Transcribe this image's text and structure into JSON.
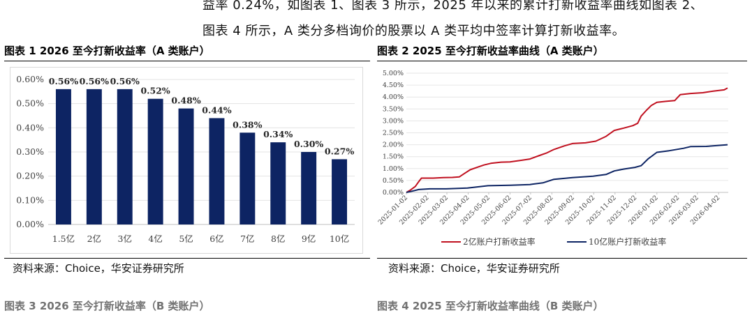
{
  "text": {
    "intro_line1": "益率 0.24%，如图表 1、图表 3 所示，2025 年以来的累计打新收益率曲线如图表 2、",
    "intro_line2": "图表 4 所示，A 类分多档询价的股票以 A 类平均中签率计算打新收益率。",
    "fig1_title": "图表 1 2026 至今打新收益率（A 类账户）",
    "fig2_title": "图表 2 2025 至今打新收益率曲线（A 类账户）",
    "source1": "资料来源：Choice，华安证券研究所",
    "source2": "资料来源：Choice，华安证券研究所",
    "next_fig3": "图表 3 2026 至今打新收益率（B 类账户）",
    "next_fig4": "图表 4 2025 至今打新收益率曲线（B 类账户）"
  },
  "chart_data": [
    {
      "type": "bar",
      "title": "",
      "categories": [
        "1.5亿",
        "2亿",
        "3亿",
        "4亿",
        "5亿",
        "6亿",
        "7亿",
        "8亿",
        "9亿",
        "10亿"
      ],
      "values": [
        0.56,
        0.56,
        0.56,
        0.52,
        0.48,
        0.44,
        0.38,
        0.34,
        0.3,
        0.27
      ],
      "data_labels": [
        "0.56%",
        "0.56%",
        "0.56%",
        "0.52%",
        "0.48%",
        "0.44%",
        "0.38%",
        "0.34%",
        "0.30%",
        "0.27%"
      ],
      "y_ticks": [
        "0.00%",
        "0.10%",
        "0.20%",
        "0.30%",
        "0.40%",
        "0.50%",
        "0.60%"
      ],
      "ylim": [
        0,
        0.6
      ],
      "grid": true,
      "bar_color": "#0d2463"
    },
    {
      "type": "line",
      "title": "",
      "x_ticks": [
        "2025-01-02",
        "2025-02-02",
        "2025-03-02",
        "2025-04-02",
        "2025-05-02",
        "2025-06-02",
        "2025-07-02",
        "2025-08-02",
        "2025-09-02",
        "2025-10-02",
        "2025-11-02",
        "2025-12-02",
        "2026-01-02",
        "2026-02-02",
        "2026-03-02",
        "2026-04-02"
      ],
      "y_ticks": [
        "0.00%",
        "0.50%",
        "1.00%",
        "1.50%",
        "2.00%",
        "2.50%",
        "3.00%",
        "3.50%",
        "4.00%",
        "4.50%",
        "5.00%"
      ],
      "ylim": [
        0,
        5.0
      ],
      "grid": true,
      "legend_position": "bottom",
      "series": [
        {
          "name": "2亿账户打新收益率",
          "color": "#c0101f",
          "points": [
            [
              "2025-01-02",
              0.0
            ],
            [
              "2025-01-08",
              0.1
            ],
            [
              "2025-01-15",
              0.25
            ],
            [
              "2025-01-20",
              0.45
            ],
            [
              "2025-01-24",
              0.6
            ],
            [
              "2025-02-10",
              0.6
            ],
            [
              "2025-02-25",
              0.62
            ],
            [
              "2025-03-10",
              0.63
            ],
            [
              "2025-03-20",
              0.65
            ],
            [
              "2025-03-28",
              0.8
            ],
            [
              "2025-04-05",
              0.95
            ],
            [
              "2025-04-15",
              1.05
            ],
            [
              "2025-04-25",
              1.15
            ],
            [
              "2025-05-05",
              1.22
            ],
            [
              "2025-05-20",
              1.27
            ],
            [
              "2025-06-02",
              1.28
            ],
            [
              "2025-06-20",
              1.35
            ],
            [
              "2025-07-01",
              1.4
            ],
            [
              "2025-07-15",
              1.55
            ],
            [
              "2025-07-25",
              1.65
            ],
            [
              "2025-08-05",
              1.8
            ],
            [
              "2025-08-20",
              1.95
            ],
            [
              "2025-09-01",
              2.05
            ],
            [
              "2025-09-20",
              2.08
            ],
            [
              "2025-10-05",
              2.15
            ],
            [
              "2025-10-20",
              2.35
            ],
            [
              "2025-11-01",
              2.6
            ],
            [
              "2025-11-15",
              2.7
            ],
            [
              "2025-11-28",
              2.8
            ],
            [
              "2025-12-05",
              2.9
            ],
            [
              "2025-12-10",
              3.2
            ],
            [
              "2025-12-18",
              3.45
            ],
            [
              "2025-12-25",
              3.65
            ],
            [
              "2026-01-02",
              3.78
            ],
            [
              "2026-01-15",
              3.82
            ],
            [
              "2026-01-28",
              3.85
            ],
            [
              "2026-02-05",
              4.1
            ],
            [
              "2026-02-20",
              4.15
            ],
            [
              "2026-03-10",
              4.18
            ],
            [
              "2026-03-25",
              4.25
            ],
            [
              "2026-04-10",
              4.3
            ],
            [
              "2026-04-15",
              4.38
            ]
          ]
        },
        {
          "name": "10亿账户打新收益率",
          "color": "#0d2463",
          "points": [
            [
              "2025-01-02",
              0.0
            ],
            [
              "2025-01-10",
              0.05
            ],
            [
              "2025-01-20",
              0.12
            ],
            [
              "2025-02-05",
              0.15
            ],
            [
              "2025-03-01",
              0.15
            ],
            [
              "2025-04-01",
              0.18
            ],
            [
              "2025-05-01",
              0.28
            ],
            [
              "2025-06-02",
              0.3
            ],
            [
              "2025-07-01",
              0.33
            ],
            [
              "2025-07-20",
              0.4
            ],
            [
              "2025-08-05",
              0.55
            ],
            [
              "2025-09-01",
              0.62
            ],
            [
              "2025-10-01",
              0.68
            ],
            [
              "2025-10-20",
              0.75
            ],
            [
              "2025-11-01",
              0.9
            ],
            [
              "2025-11-15",
              0.98
            ],
            [
              "2025-12-01",
              1.05
            ],
            [
              "2025-12-10",
              1.12
            ],
            [
              "2025-12-20",
              1.4
            ],
            [
              "2026-01-02",
              1.68
            ],
            [
              "2026-01-20",
              1.75
            ],
            [
              "2026-02-10",
              1.85
            ],
            [
              "2026-02-20",
              1.92
            ],
            [
              "2026-03-15",
              1.93
            ],
            [
              "2026-04-15",
              2.0
            ]
          ]
        }
      ]
    }
  ]
}
